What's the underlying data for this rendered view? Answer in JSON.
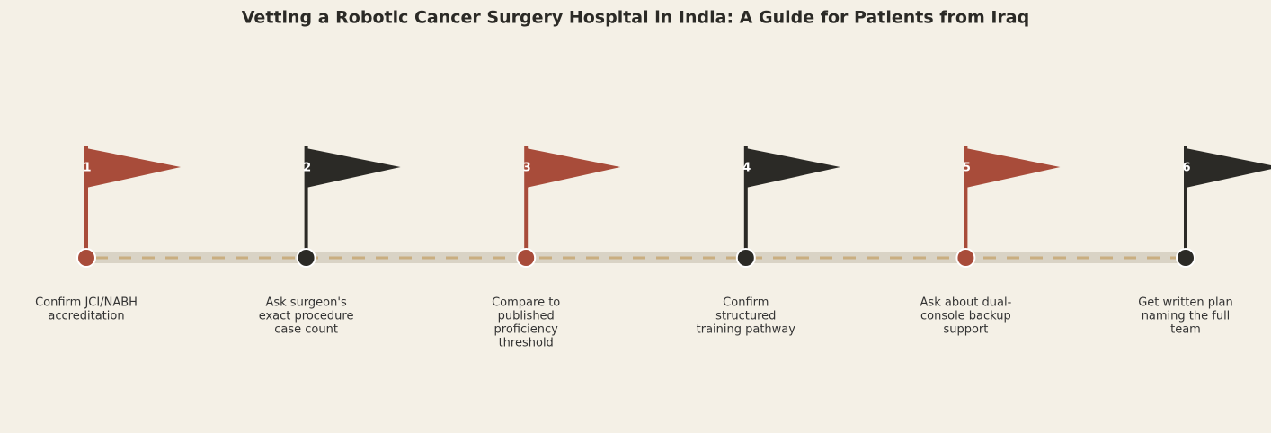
{
  "title": "Vetting a Robotic Cancer Surgery Hospital in India: A Guide for Patients from Iraq",
  "steps": [
    {
      "number": 1,
      "color": "#a84c3a",
      "label": [
        "Confirm JCI/NABH",
        "accreditation"
      ]
    },
    {
      "number": 2,
      "color": "#2b2a26",
      "label": [
        "Ask surgeon's",
        "exact procedure",
        "case count"
      ]
    },
    {
      "number": 3,
      "color": "#a84c3a",
      "label": [
        "Compare to",
        "published",
        "proficiency",
        "threshold"
      ]
    },
    {
      "number": 4,
      "color": "#2b2a26",
      "label": [
        "Confirm",
        "structured",
        "training pathway"
      ]
    },
    {
      "number": 5,
      "color": "#a84c3a",
      "label": [
        "Ask about dual-",
        "console backup",
        "support"
      ]
    },
    {
      "number": 6,
      "color": "#2b2a26",
      "label": [
        "Get written plan",
        "naming the full",
        "team"
      ]
    }
  ]
}
